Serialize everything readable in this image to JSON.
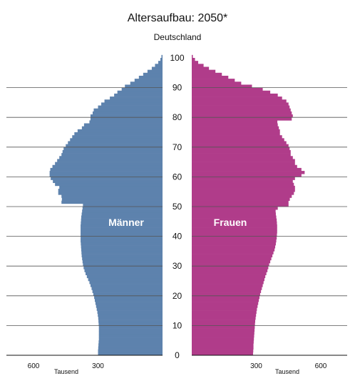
{
  "chart_data": {
    "type": "bar",
    "title": "Altersaufbau: 2050*",
    "subtitle": "Deutschland",
    "age_ticks": [
      0,
      10,
      20,
      30,
      40,
      50,
      60,
      70,
      80,
      90,
      100
    ],
    "x_ticks": [
      600,
      300
    ],
    "x_unit": "Tausend",
    "xlim": [
      0,
      730
    ],
    "grid": true,
    "colors": {
      "male": "#5d82ad",
      "female": "#b03c8a",
      "grid": "#555555"
    },
    "series": [
      {
        "name": "Männer",
        "values": [
          300,
          300,
          299,
          298,
          297,
          296,
          296,
          296,
          296,
          296,
          297,
          298,
          299,
          301,
          303,
          306,
          309,
          312,
          315,
          318,
          322,
          326,
          330,
          335,
          340,
          346,
          352,
          358,
          363,
          367,
          370,
          372,
          374,
          376,
          377,
          378,
          379,
          380,
          381,
          381,
          381,
          381,
          381,
          381,
          380,
          379,
          378,
          376,
          374,
          372,
          370,
          470,
          468,
          470,
          485,
          485,
          480,
          500,
          510,
          520,
          525,
          525,
          522,
          512,
          500,
          490,
          480,
          470,
          465,
          460,
          450,
          440,
          430,
          420,
          410,
          395,
          375,
          365,
          340,
          335,
          335,
          325,
          320,
          300,
          285,
          270,
          245,
          225,
          210,
          190,
          175,
          150,
          130,
          110,
          90,
          70,
          50,
          35,
          20,
          10,
          5
        ],
        "extra_color": "#5d82ad"
      },
      {
        "name": "Frauen",
        "values": [
          285,
          286,
          287,
          287,
          288,
          289,
          290,
          291,
          292,
          293,
          294,
          295,
          297,
          299,
          301,
          303,
          306,
          309,
          312,
          315,
          318,
          322,
          326,
          330,
          334,
          338,
          342,
          347,
          352,
          356,
          360,
          365,
          370,
          375,
          380,
          385,
          388,
          391,
          393,
          395,
          396,
          397,
          397,
          397,
          396,
          395,
          393,
          391,
          390,
          400,
          450,
          450,
          456,
          465,
          475,
          480,
          480,
          475,
          470,
          480,
          510,
          525,
          510,
          490,
          480,
          480,
          470,
          460,
          460,
          455,
          450,
          440,
          430,
          420,
          410,
          410,
          405,
          400,
          398,
          465,
          470,
          465,
          460,
          455,
          450,
          440,
          420,
          400,
          365,
          330,
          280,
          230,
          200,
          170,
          140,
          110,
          80,
          55,
          30,
          15,
          5
        ]
      }
    ]
  }
}
